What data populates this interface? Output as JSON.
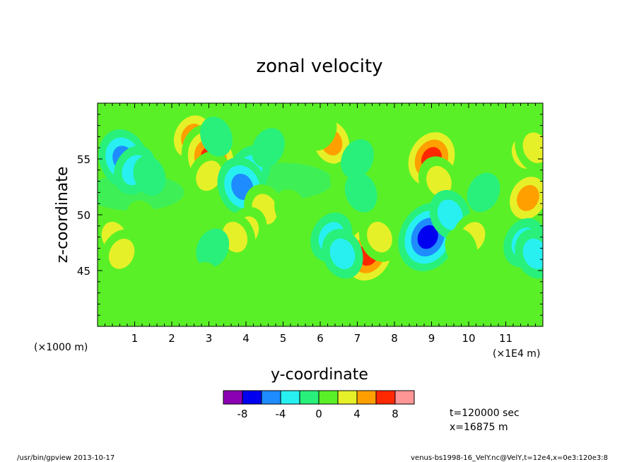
{
  "chart_data": {
    "type": "heatmap",
    "title": "zonal velocity",
    "xlabel": "y-coordinate",
    "ylabel": "z-coordinate",
    "x_unit": "(×1E4 m)",
    "y_unit": "(×1000 m)",
    "xlim": [
      0,
      12
    ],
    "ylim": [
      40,
      60
    ],
    "x_ticks": [
      "1",
      "2",
      "3",
      "4",
      "5",
      "6",
      "7",
      "8",
      "9",
      "10",
      "11"
    ],
    "y_ticks": [
      "45",
      "50",
      "55"
    ],
    "legend": {
      "labels": [
        "-8",
        "-4",
        "0",
        "4",
        "8"
      ],
      "colors": [
        "#8c00b4",
        "#0000f0",
        "#1e8cff",
        "#28f0f0",
        "#28f07a",
        "#5af028",
        "#e6f028",
        "#ffa000",
        "#ff2800",
        "#ff9696"
      ]
    },
    "features": [
      {
        "y": 0.7,
        "z": 55.0,
        "value": -5
      },
      {
        "y": 1.0,
        "z": 54.0,
        "value": -4
      },
      {
        "y": 1.4,
        "z": 53.5,
        "value": -2
      },
      {
        "y": 0.2,
        "z": 48.5,
        "value": 2
      },
      {
        "y": 0.45,
        "z": 48.0,
        "value": 4
      },
      {
        "y": 0.65,
        "z": 46.5,
        "value": 4
      },
      {
        "y": 1.2,
        "z": 49.5,
        "value": 2
      },
      {
        "y": 2.55,
        "z": 57.0,
        "value": 5
      },
      {
        "y": 3.05,
        "z": 55.0,
        "value": 8
      },
      {
        "y": 3.0,
        "z": 53.5,
        "value": 3
      },
      {
        "y": 3.2,
        "z": 57.0,
        "value": -2
      },
      {
        "y": 4.1,
        "z": 54.0,
        "value": -4
      },
      {
        "y": 3.9,
        "z": 52.5,
        "value": -6
      },
      {
        "y": 4.6,
        "z": 56.0,
        "value": -2
      },
      {
        "y": 4.5,
        "z": 50.5,
        "value": 4
      },
      {
        "y": 4.0,
        "z": 48.5,
        "value": 3
      },
      {
        "y": 3.7,
        "z": 48.0,
        "value": 4
      },
      {
        "y": 3.1,
        "z": 47.0,
        "value": -2
      },
      {
        "y": 6.3,
        "z": 56.5,
        "value": 5
      },
      {
        "y": 6.0,
        "z": 57.5,
        "value": 2
      },
      {
        "y": 6.7,
        "z": 53.0,
        "value": 2
      },
      {
        "y": 7.0,
        "z": 55.0,
        "value": -2
      },
      {
        "y": 7.1,
        "z": 52.0,
        "value": -2
      },
      {
        "y": 7.3,
        "z": 46.5,
        "value": 8
      },
      {
        "y": 7.6,
        "z": 48.0,
        "value": 3
      },
      {
        "y": 6.3,
        "z": 48.0,
        "value": -3
      },
      {
        "y": 6.6,
        "z": 46.5,
        "value": -4
      },
      {
        "y": 9.0,
        "z": 55.0,
        "value": 8
      },
      {
        "y": 9.2,
        "z": 53.0,
        "value": 3
      },
      {
        "y": 8.9,
        "z": 48.0,
        "value": -8
      },
      {
        "y": 9.5,
        "z": 50.0,
        "value": -3
      },
      {
        "y": 10.1,
        "z": 48.0,
        "value": 4
      },
      {
        "y": 9.8,
        "z": 47.0,
        "value": 2
      },
      {
        "y": 10.4,
        "z": 52.0,
        "value": -2
      },
      {
        "y": 11.5,
        "z": 55.5,
        "value": 3
      },
      {
        "y": 11.6,
        "z": 51.5,
        "value": 5
      },
      {
        "y": 11.8,
        "z": 56.0,
        "value": 4
      },
      {
        "y": 11.5,
        "z": 47.5,
        "value": -4
      },
      {
        "y": 11.8,
        "z": 46.5,
        "value": -3
      },
      {
        "y": 1.8,
        "z": 48.5,
        "value": 1
      },
      {
        "y": 5.2,
        "z": 50.5,
        "value": 1
      },
      {
        "y": 8.0,
        "z": 51.0,
        "value": 1
      },
      {
        "y": 5.5,
        "z": 44.0,
        "value": 0.6
      },
      {
        "y": 2.8,
        "z": 44.0,
        "value": 0.6
      },
      {
        "y": 9.5,
        "z": 43.5,
        "value": 0.6
      }
    ]
  },
  "info": {
    "time": "t=120000 sec",
    "position": "x=16875 m"
  },
  "footer": {
    "left": "/usr/bin/gpview   2013-10-17",
    "right": "venus-bs1998-16_VelY.nc@VelY,t=12e4,x=0e3:120e3:8"
  }
}
